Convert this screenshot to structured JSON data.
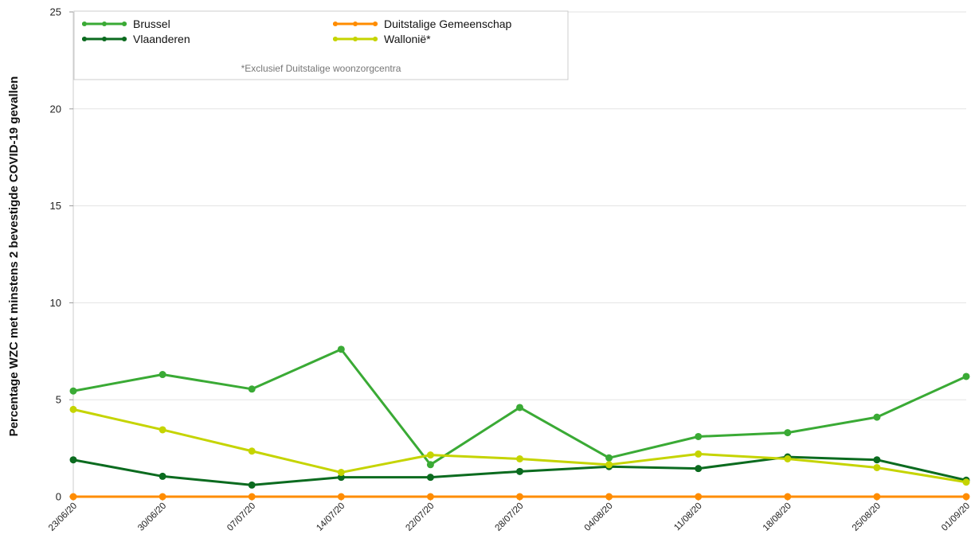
{
  "chart_data": {
    "type": "line",
    "title": "",
    "xlabel": "",
    "ylabel": "Percentage WZC met minstens 2 bevestigde COVID-19 gevallen",
    "ylim": [
      0,
      25
    ],
    "yticks": [
      0,
      5,
      10,
      15,
      20,
      25
    ],
    "grid": true,
    "legend_position": "top-left",
    "categories": [
      "23/06/20",
      "30/06/20",
      "07/07/20",
      "14/07/20",
      "22/07/20",
      "28/07/20",
      "04/08/20",
      "11/08/20",
      "18/08/20",
      "25/08/20",
      "01/09/20"
    ],
    "series": [
      {
        "name": "Brussel",
        "color": "#3aaa35",
        "values": [
          5.45,
          6.3,
          5.55,
          7.6,
          1.65,
          4.6,
          2.0,
          3.1,
          3.3,
          4.1,
          6.2
        ]
      },
      {
        "name": "Duitstalige Gemeenschap",
        "color": "#ff8c00",
        "values": [
          0,
          0,
          0,
          0,
          0,
          0,
          0,
          0,
          0,
          0,
          0
        ]
      },
      {
        "name": "Vlaanderen",
        "color": "#0b6b1f",
        "values": [
          1.9,
          1.05,
          0.6,
          1.0,
          1.0,
          1.3,
          1.55,
          1.45,
          2.05,
          1.9,
          0.85
        ]
      },
      {
        "name": "Wallonië*",
        "color": "#c5d400",
        "values": [
          4.5,
          3.45,
          2.35,
          1.25,
          2.15,
          1.95,
          1.65,
          2.2,
          1.95,
          1.5,
          0.75
        ]
      }
    ],
    "legend_note": "*Exclusief Duitstalige woonzorgcentra"
  }
}
